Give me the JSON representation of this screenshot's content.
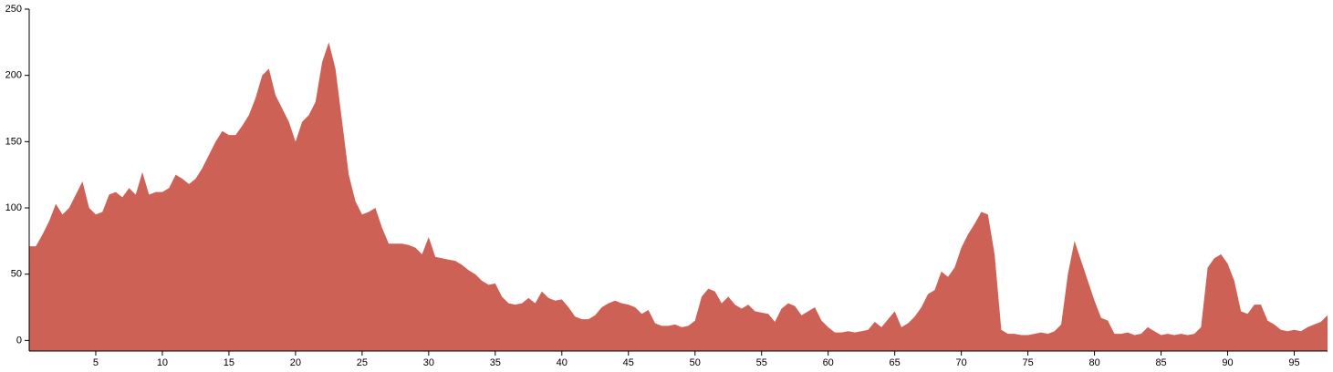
{
  "chart_data": {
    "type": "area",
    "color": "#cd6155",
    "x": [
      0,
      0.5,
      1,
      1.5,
      2,
      2.5,
      3,
      3.5,
      4,
      4.5,
      5,
      5.5,
      6,
      6.5,
      7,
      7.5,
      8,
      8.5,
      9,
      9.5,
      10,
      10.5,
      11,
      11.5,
      12,
      12.5,
      13,
      13.5,
      14,
      14.5,
      15,
      15.5,
      16,
      16.5,
      17,
      17.5,
      18,
      18.5,
      19,
      19.5,
      20,
      20.5,
      21,
      21.5,
      22,
      22.5,
      23,
      23.5,
      24,
      24.5,
      25,
      25.5,
      26,
      26.5,
      27,
      27.5,
      28,
      28.5,
      29,
      29.5,
      30,
      30.5,
      31,
      31.5,
      32,
      32.5,
      33,
      33.5,
      34,
      34.5,
      35,
      35.5,
      36,
      36.5,
      37,
      37.5,
      38,
      38.5,
      39,
      39.5,
      40,
      40.5,
      41,
      41.5,
      42,
      42.5,
      43,
      43.5,
      44,
      44.5,
      45,
      45.5,
      46,
      46.5,
      47,
      47.5,
      48,
      48.5,
      49,
      49.5,
      50,
      50.5,
      51,
      51.5,
      52,
      52.5,
      53,
      53.5,
      54,
      54.5,
      55,
      55.5,
      56,
      56.5,
      57,
      57.5,
      58,
      58.5,
      59,
      59.5,
      60,
      60.5,
      61,
      61.5,
      62,
      62.5,
      63,
      63.5,
      64,
      64.5,
      65,
      65.5,
      66,
      66.5,
      67,
      67.5,
      68,
      68.5,
      69,
      69.5,
      70,
      70.5,
      71,
      71.5,
      72,
      72.5,
      73,
      73.5,
      74,
      74.5,
      75,
      75.5,
      76,
      76.5,
      77,
      77.5,
      78,
      78.5,
      79,
      79.5,
      80,
      80.5,
      81,
      81.5,
      82,
      82.5,
      83,
      83.5,
      84,
      84.5,
      85,
      85.5,
      86,
      86.5,
      87,
      87.5,
      88,
      88.5,
      89,
      89.5,
      90,
      90.5,
      91,
      91.5,
      92,
      92.5,
      93,
      93.5,
      94,
      94.5,
      95,
      95.5,
      96,
      96.5,
      97,
      97.5
    ],
    "values": [
      71,
      71,
      80,
      90,
      103,
      95,
      100,
      110,
      120,
      100,
      95,
      97,
      110,
      112,
      108,
      115,
      110,
      127,
      110,
      112,
      112,
      115,
      125,
      122,
      118,
      122,
      130,
      140,
      150,
      158,
      155,
      155,
      162,
      170,
      183,
      200,
      205,
      185,
      175,
      165,
      150,
      165,
      170,
      180,
      210,
      225,
      205,
      165,
      125,
      105,
      95,
      97,
      100,
      85,
      73,
      73,
      73,
      72,
      70,
      65,
      78,
      63,
      62,
      61,
      60,
      57,
      53,
      50,
      45,
      42,
      43,
      33,
      28,
      27,
      28,
      32,
      28,
      37,
      32,
      30,
      31,
      25,
      18,
      16,
      16,
      19,
      25,
      28,
      30,
      28,
      27,
      25,
      20,
      23,
      13,
      11,
      11,
      12,
      10,
      11,
      15,
      33,
      39,
      37,
      28,
      33,
      27,
      24,
      27,
      22,
      21,
      20,
      14,
      24,
      28,
      26,
      19,
      22,
      25,
      15,
      10,
      6,
      6,
      7,
      6,
      7,
      8,
      14,
      10,
      16,
      22,
      10,
      13,
      18,
      25,
      35,
      38,
      52,
      48,
      55,
      70,
      80,
      88,
      97,
      95,
      65,
      8,
      5,
      5,
      4,
      4,
      5,
      6,
      5,
      7,
      12,
      50,
      75,
      60,
      45,
      30,
      17,
      15,
      5,
      5,
      6,
      4,
      5,
      10,
      7,
      4,
      5,
      4,
      5,
      4,
      5,
      10,
      55,
      62,
      65,
      58,
      45,
      22,
      20,
      27,
      27,
      15,
      12,
      8,
      7,
      8,
      7,
      10,
      12,
      14,
      19
    ],
    "xlim": [
      0,
      97.5
    ],
    "xticks": [
      5,
      10,
      15,
      20,
      25,
      30,
      35,
      40,
      45,
      50,
      55,
      60,
      65,
      70,
      75,
      80,
      85,
      90,
      95
    ],
    "ylim": [
      -8,
      250
    ],
    "yticks": [
      0,
      50,
      100,
      150,
      200,
      250
    ]
  }
}
